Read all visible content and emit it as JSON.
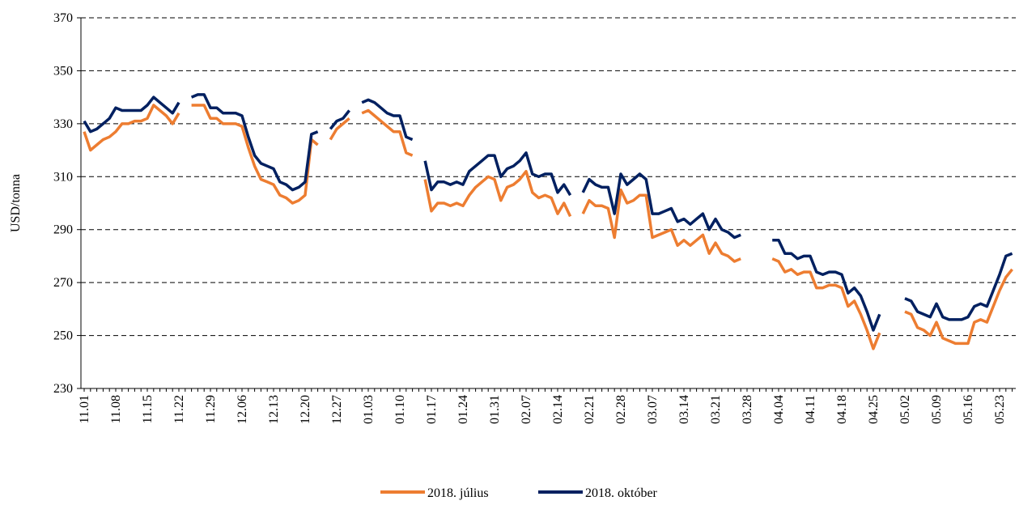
{
  "chart_data": {
    "type": "line",
    "y_label": "USD/tonna",
    "ylim": [
      230,
      370
    ],
    "yticks": [
      230,
      250,
      270,
      290,
      310,
      330,
      350,
      370
    ],
    "grid": true,
    "legend": "bottom",
    "categories": [
      "11.01",
      null,
      null,
      null,
      null,
      "11.08",
      null,
      null,
      null,
      null,
      "11.15",
      null,
      null,
      null,
      null,
      "11.22",
      null,
      null,
      null,
      null,
      "11.29",
      null,
      null,
      null,
      null,
      "12.06",
      null,
      null,
      null,
      null,
      "12.13",
      null,
      null,
      null,
      null,
      "12.20",
      null,
      null,
      null,
      null,
      "12.27",
      null,
      null,
      null,
      null,
      "01.03",
      null,
      null,
      null,
      null,
      "01.10",
      null,
      null,
      null,
      null,
      "01.17",
      null,
      null,
      null,
      null,
      "01.24",
      null,
      null,
      null,
      null,
      "01.31",
      null,
      null,
      null,
      null,
      "02.07",
      null,
      null,
      null,
      null,
      "02.14",
      null,
      null,
      null,
      null,
      "02.21",
      null,
      null,
      null,
      null,
      "02.28",
      null,
      null,
      null,
      null,
      "03.07",
      null,
      null,
      null,
      null,
      "03.14",
      null,
      null,
      null,
      null,
      "03.21",
      null,
      null,
      null,
      null,
      "03.28",
      null,
      null,
      null,
      null,
      "04.04",
      null,
      null,
      null,
      null,
      "04.11",
      null,
      null,
      null,
      null,
      "04.18",
      null,
      null,
      null,
      null,
      "04.25",
      null,
      null,
      null,
      null,
      "05.02",
      null,
      null,
      null,
      null,
      "05.09",
      null,
      null,
      null,
      null,
      "05.16",
      null,
      null,
      null,
      null,
      "05.23",
      null,
      null
    ],
    "series": [
      {
        "name": "2018. július",
        "color": "#ed7d31",
        "values": [
          327,
          320,
          322,
          324,
          325,
          327,
          330,
          330,
          331,
          331,
          332,
          337,
          335,
          333,
          330,
          334,
          null,
          337,
          337,
          337,
          332,
          332,
          330,
          330,
          330,
          329,
          321,
          314,
          309,
          308,
          307,
          303,
          302,
          300,
          301,
          303,
          324,
          322,
          null,
          324,
          328,
          330,
          332,
          null,
          334,
          335,
          333,
          331,
          329,
          327,
          327,
          319,
          318,
          null,
          309,
          297,
          300,
          300,
          299,
          300,
          299,
          303,
          306,
          308,
          310,
          309,
          301,
          306,
          307,
          309,
          312,
          304,
          302,
          303,
          302,
          296,
          300,
          295,
          null,
          296,
          301,
          299,
          299,
          298,
          287,
          305,
          300,
          301,
          303,
          303,
          287,
          288,
          289,
          290,
          284,
          286,
          284,
          286,
          288,
          281,
          285,
          281,
          280,
          278,
          279,
          null,
          null,
          null,
          null,
          279,
          278,
          274,
          275,
          273,
          274,
          274,
          268,
          268,
          269,
          269,
          268,
          261,
          263,
          258,
          252,
          245,
          251,
          null,
          null,
          null,
          259,
          258,
          253,
          252,
          250,
          255,
          249,
          248,
          247,
          247,
          247,
          255,
          256,
          255,
          261,
          267,
          272,
          275
        ]
      },
      {
        "name": "2018. október",
        "color": "#002060",
        "values": [
          331,
          327,
          328,
          330,
          332,
          336,
          335,
          335,
          335,
          335,
          337,
          340,
          338,
          336,
          334,
          338,
          null,
          340,
          341,
          341,
          336,
          336,
          334,
          334,
          334,
          333,
          325,
          318,
          315,
          314,
          313,
          308,
          307,
          305,
          306,
          308,
          326,
          327,
          null,
          328,
          331,
          332,
          335,
          null,
          338,
          339,
          338,
          336,
          334,
          333,
          333,
          325,
          324,
          null,
          316,
          305,
          308,
          308,
          307,
          308,
          307,
          312,
          314,
          316,
          318,
          318,
          310,
          313,
          314,
          316,
          319,
          311,
          310,
          311,
          311,
          304,
          307,
          303,
          null,
          304,
          309,
          307,
          306,
          306,
          296,
          311,
          307,
          309,
          311,
          309,
          296,
          296,
          297,
          298,
          293,
          294,
          292,
          294,
          296,
          290,
          294,
          290,
          289,
          287,
          288,
          null,
          null,
          null,
          null,
          286,
          286,
          281,
          281,
          279,
          280,
          280,
          274,
          273,
          274,
          274,
          273,
          266,
          268,
          265,
          259,
          252,
          258,
          null,
          null,
          null,
          264,
          263,
          259,
          258,
          257,
          262,
          257,
          256,
          256,
          256,
          257,
          261,
          262,
          261,
          267,
          273,
          280,
          281
        ]
      }
    ]
  }
}
